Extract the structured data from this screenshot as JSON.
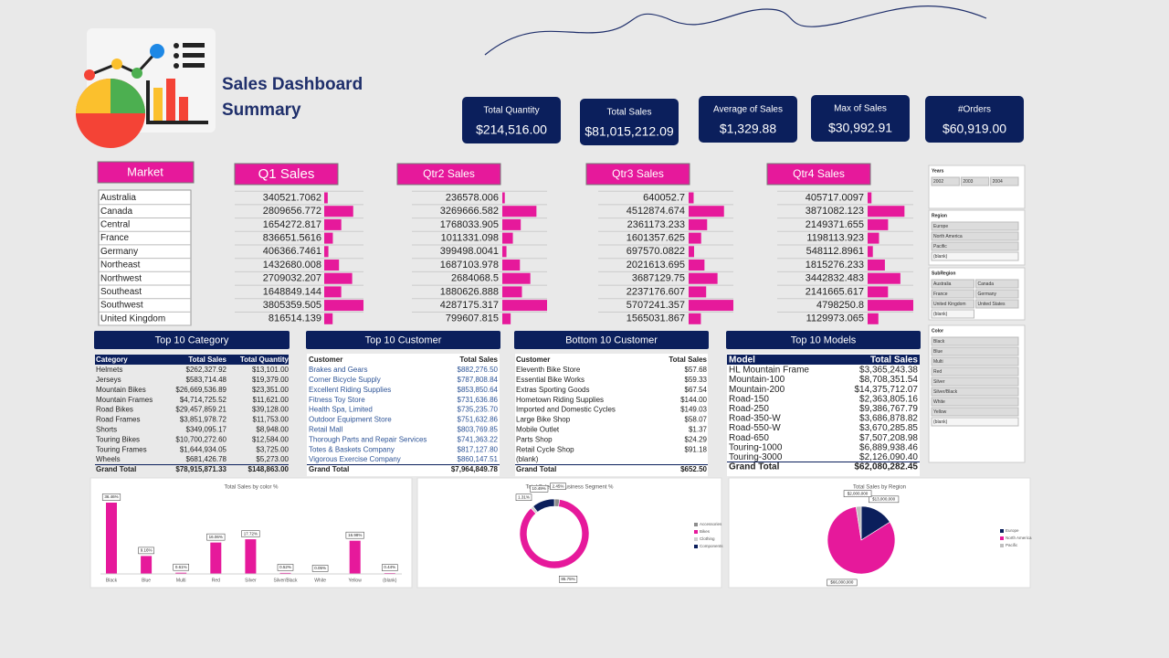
{
  "header": {
    "title_lines": [
      "Sales Dashboard",
      "Summary"
    ]
  },
  "kpis": [
    {
      "label": "Total Quantity",
      "value": "$214,516.00"
    },
    {
      "label": "Total Sales",
      "value": "$81,015,212.09"
    },
    {
      "label": "Average of Sales",
      "value": "$1,329.88"
    },
    {
      "label": "Max of Sales",
      "value": "$30,992.91"
    },
    {
      "label": "#Orders",
      "value": "$60,919.00"
    }
  ],
  "market": {
    "title": "Market",
    "items": [
      "Australia",
      "Canada",
      "Central",
      "France",
      "Germany",
      "Northeast",
      "Northwest",
      "Southeast",
      "Southwest",
      "United Kingdom"
    ]
  },
  "quarters": [
    {
      "title": "Q1 Sales",
      "values": [
        340521.7062,
        2809656.772,
        1654272.817,
        836651.5616,
        406366.7461,
        1432680.008,
        2709032.207,
        1648849.144,
        3805359.505,
        816514.139
      ]
    },
    {
      "title": "Qtr2 Sales",
      "values": [
        236578.006,
        3269666.582,
        1768033.905,
        1011331.098,
        399498.0041,
        1687103.978,
        2684068.5,
        1880626.888,
        4287175.317,
        799607.815
      ]
    },
    {
      "title": "Qtr3 Sales",
      "values": [
        640052.7,
        4512874.674,
        2361173.233,
        1601357.625,
        697570.0822,
        2021613.695,
        3687129.75,
        2237176.607,
        5707241.357,
        1565031.867
      ]
    },
    {
      "title": "Qtr4 Sales",
      "values": [
        405717.0097,
        3871082.123,
        2149371.655,
        1198113.923,
        548112.8961,
        1815276.233,
        3442832.483,
        2141665.617,
        4798250.8,
        1129973.065
      ]
    }
  ],
  "tables": [
    {
      "title": "Top 10 Category",
      "columns": [
        "Category",
        "Total Sales",
        "Total Quantity"
      ],
      "rows": [
        [
          "Helmets",
          "$262,327.92",
          "$13,101.00"
        ],
        [
          "Jerseys",
          "$583,714.48",
          "$19,379.00"
        ],
        [
          "Mountain Bikes",
          "$26,669,536.89",
          "$23,351.00"
        ],
        [
          "Mountain Frames",
          "$4,714,725.52",
          "$11,621.00"
        ],
        [
          "Road Bikes",
          "$29,457,859.21",
          "$39,128.00"
        ],
        [
          "Road Frames",
          "$3,851,978.72",
          "$11,753.00"
        ],
        [
          "Shorts",
          "$349,095.17",
          "$8,948.00"
        ],
        [
          "Touring Bikes",
          "$10,700,272.60",
          "$12,584.00"
        ],
        [
          "Touring Frames",
          "$1,644,934.05",
          "$3,725.00"
        ],
        [
          "Wheels",
          "$681,426.78",
          "$5,273.00"
        ],
        [
          "Grand Total",
          "$78,915,871.33",
          "$148,863.00"
        ]
      ]
    },
    {
      "title": "Top 10 Customer",
      "columns": [
        "Customer",
        "Total Sales"
      ],
      "rows": [
        [
          "Brakes and Gears",
          "$882,276.50"
        ],
        [
          "Corner Bicycle Supply",
          "$787,808.84"
        ],
        [
          "Excellent Riding Supplies",
          "$853,850.64"
        ],
        [
          "Fitness Toy Store",
          "$731,636.86"
        ],
        [
          "Health Spa, Limited",
          "$735,235.70"
        ],
        [
          "Outdoor Equipment Store",
          "$751,632.86"
        ],
        [
          "Retail Mall",
          "$803,769.85"
        ],
        [
          "Thorough Parts and Repair Services",
          "$741,363.22"
        ],
        [
          "Totes & Baskets Company",
          "$817,127.80"
        ],
        [
          "Vigorous Exercise Company",
          "$860,147.51"
        ],
        [
          "Grand Total",
          "$7,964,849.78"
        ]
      ]
    },
    {
      "title": "Bottom 10 Customer",
      "columns": [
        "Customer",
        "Total Sales"
      ],
      "rows": [
        [
          "Eleventh Bike Store",
          "$57.68"
        ],
        [
          "Essential Bike Works",
          "$59.33"
        ],
        [
          "Extras Sporting Goods",
          "$67.54"
        ],
        [
          "Hometown Riding Supplies",
          "$144.00"
        ],
        [
          "Imported and Domestic Cycles",
          "$149.03"
        ],
        [
          "Large Bike Shop",
          "$58.07"
        ],
        [
          "Mobile Outlet",
          "$1.37"
        ],
        [
          "Parts Shop",
          "$24.29"
        ],
        [
          "Retail Cycle Shop",
          "$91.18"
        ],
        [
          "(blank)"
        ],
        [
          "Grand Total",
          "$652.50"
        ]
      ]
    },
    {
      "title": "Top 10 Models",
      "columns": [
        "Model",
        "Total Sales"
      ],
      "rows": [
        [
          "HL Mountain Frame",
          "$3,365,243.38"
        ],
        [
          "Mountain-100",
          "$8,708,351.54"
        ],
        [
          "Mountain-200",
          "$14,375,712.07"
        ],
        [
          "Road-150",
          "$2,363,805.16"
        ],
        [
          "Road-250",
          "$9,386,767.79"
        ],
        [
          "Road-350-W",
          "$3,686,878.82"
        ],
        [
          "Road-550-W",
          "$3,670,285.85"
        ],
        [
          "Road-650",
          "$7,507,208.98"
        ],
        [
          "Touring-1000",
          "$6,889,938.46"
        ],
        [
          "Touring-3000",
          "$2,126,090.40"
        ],
        [
          "Grand Total",
          "$62,080,282.45"
        ]
      ]
    }
  ],
  "slicers": [
    {
      "title": "Years",
      "items": [
        "2002",
        "2003",
        "2004"
      ]
    },
    {
      "title": "Region",
      "items": [
        "Europe",
        "North America",
        "Pacific",
        "(blank)"
      ]
    },
    {
      "title": "SubRegion",
      "items": [
        "Australia",
        "Canada",
        "France",
        "Germany",
        "United Kingdom",
        "United States",
        "(blank)"
      ]
    },
    {
      "title": "Color",
      "items": [
        "Black",
        "Blue",
        "Multi",
        "Red",
        "Silver",
        "Silver/Black",
        "White",
        "Yellow",
        "(blank)"
      ]
    }
  ],
  "chart_data": [
    {
      "type": "bar",
      "title": "Total Sales by color %",
      "categories": [
        "Black",
        "Blue",
        "Multi",
        "Red",
        "Silver",
        "Silver/Black",
        "White",
        "Yellow",
        "(blank)"
      ],
      "values": [
        36.46,
        9.16,
        0.61,
        16.06,
        17.72,
        0.52,
        0.05,
        16.98,
        0.44
      ],
      "value_labels": [
        "36.46%",
        "9.16%",
        "0.61%",
        "16.06%",
        "17.72%",
        "0.52%",
        "0.05%",
        "16.98%",
        "0.44%"
      ],
      "color": "#e6199b"
    },
    {
      "type": "donut",
      "title": "Total Sales by Business Segment %",
      "categories": [
        "Accessories",
        "Bikes",
        "Clothing",
        "Components"
      ],
      "values": [
        2.45,
        85.75,
        1.31,
        10.49
      ],
      "value_labels": [
        "2.45%",
        "85.75%",
        "1.31%",
        "10.49%"
      ],
      "colors": [
        "#8c8c8c",
        "#e6199b",
        "#cfcfcf",
        "#0b1f5c"
      ]
    },
    {
      "type": "pie",
      "title": "Total Sales by Region",
      "categories": [
        "Europe",
        "North America",
        "Pacific"
      ],
      "values": [
        13000000,
        66000000,
        2000000
      ],
      "value_labels": [
        "$13,000,000",
        "$66,000,000",
        "$2,000,000"
      ],
      "colors": [
        "#0b1f5c",
        "#e6199b",
        "#bfbfbf"
      ]
    }
  ]
}
